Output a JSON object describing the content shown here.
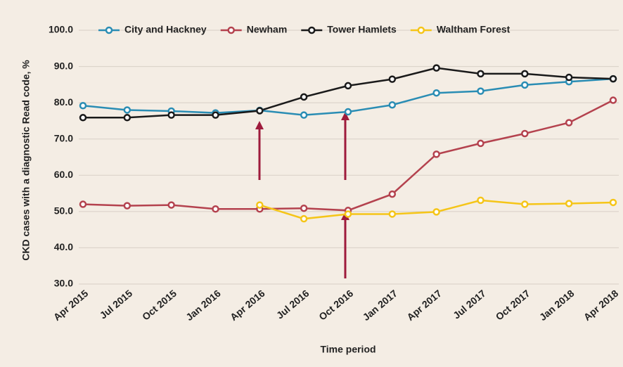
{
  "chart_data": {
    "type": "line",
    "ylabel": "CKD cases with a diagnostic Read code, %",
    "xlabel": "Time period",
    "categories": [
      "Apr 2015",
      "Jul 2015",
      "Oct 2015",
      "Jan 2016",
      "Apr 2016",
      "Jul 2016",
      "Oct 2016",
      "Jan 2017",
      "Apr 2017",
      "Jul 2017",
      "Oct 2017",
      "Jan 2018",
      "Apr 2018"
    ],
    "series": [
      {
        "name": "City and Hackney",
        "color": "#2a8db4",
        "values": [
          79.2,
          78.0,
          77.7,
          77.2,
          77.9,
          76.6,
          77.5,
          79.4,
          82.7,
          83.2,
          84.9,
          85.8,
          86.6
        ]
      },
      {
        "name": "Newham",
        "color": "#b4424e",
        "values": [
          52.0,
          51.6,
          51.8,
          50.7,
          50.7,
          50.9,
          50.3,
          54.8,
          65.8,
          68.8,
          71.5,
          74.5,
          80.7
        ]
      },
      {
        "name": "Tower Hamlets",
        "color": "#1a1a1a",
        "values": [
          75.9,
          75.9,
          76.6,
          76.6,
          77.8,
          81.6,
          84.7,
          86.5,
          89.6,
          88.0,
          88.0,
          87.0,
          86.6
        ]
      },
      {
        "name": "Waltham Forest",
        "color": "#f5c518",
        "values": [
          null,
          null,
          null,
          null,
          51.8,
          48.0,
          49.3,
          49.3,
          49.9,
          53.1,
          52.0,
          52.2,
          52.5
        ]
      }
    ],
    "ylim": [
      30,
      100
    ],
    "yticks": [
      {
        "value": 30,
        "label": "30.0"
      },
      {
        "value": 40,
        "label": "40.0"
      },
      {
        "value": 50,
        "label": "50.0"
      },
      {
        "value": 60,
        "label": "60.0"
      },
      {
        "value": 70,
        "label": "70.0"
      },
      {
        "value": 80,
        "label": "80.0"
      },
      {
        "value": 90,
        "label": "90.0"
      },
      {
        "value": 100,
        "label": "100.0"
      }
    ],
    "grid": true,
    "legend": "top"
  }
}
